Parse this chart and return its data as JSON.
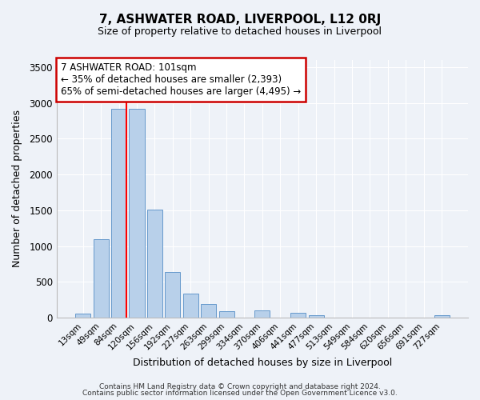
{
  "title": "7, ASHWATER ROAD, LIVERPOOL, L12 0RJ",
  "subtitle": "Size of property relative to detached houses in Liverpool",
  "xlabel": "Distribution of detached houses by size in Liverpool",
  "ylabel": "Number of detached properties",
  "bar_labels": [
    "13sqm",
    "49sqm",
    "84sqm",
    "120sqm",
    "156sqm",
    "192sqm",
    "227sqm",
    "263sqm",
    "299sqm",
    "334sqm",
    "370sqm",
    "406sqm",
    "441sqm",
    "477sqm",
    "513sqm",
    "549sqm",
    "584sqm",
    "620sqm",
    "656sqm",
    "691sqm",
    "727sqm"
  ],
  "bar_values": [
    50,
    1100,
    2920,
    2920,
    1510,
    640,
    330,
    195,
    90,
    5,
    95,
    5,
    70,
    30,
    5,
    5,
    5,
    5,
    5,
    5,
    35
  ],
  "bar_color": "#b8d0ea",
  "bar_edge_color": "#6699cc",
  "red_line_index": 2,
  "ylim": [
    0,
    3600
  ],
  "yticks": [
    0,
    500,
    1000,
    1500,
    2000,
    2500,
    3000,
    3500
  ],
  "annotation_title": "7 ASHWATER ROAD: 101sqm",
  "annotation_line1": "← 35% of detached houses are smaller (2,393)",
  "annotation_line2": "65% of semi-detached houses are larger (4,495) →",
  "annotation_box_color": "#ffffff",
  "annotation_box_edge": "#cc0000",
  "footer1": "Contains HM Land Registry data © Crown copyright and database right 2024.",
  "footer2": "Contains public sector information licensed under the Open Government Licence v3.0.",
  "background_color": "#eef2f8",
  "grid_color": "#ffffff"
}
